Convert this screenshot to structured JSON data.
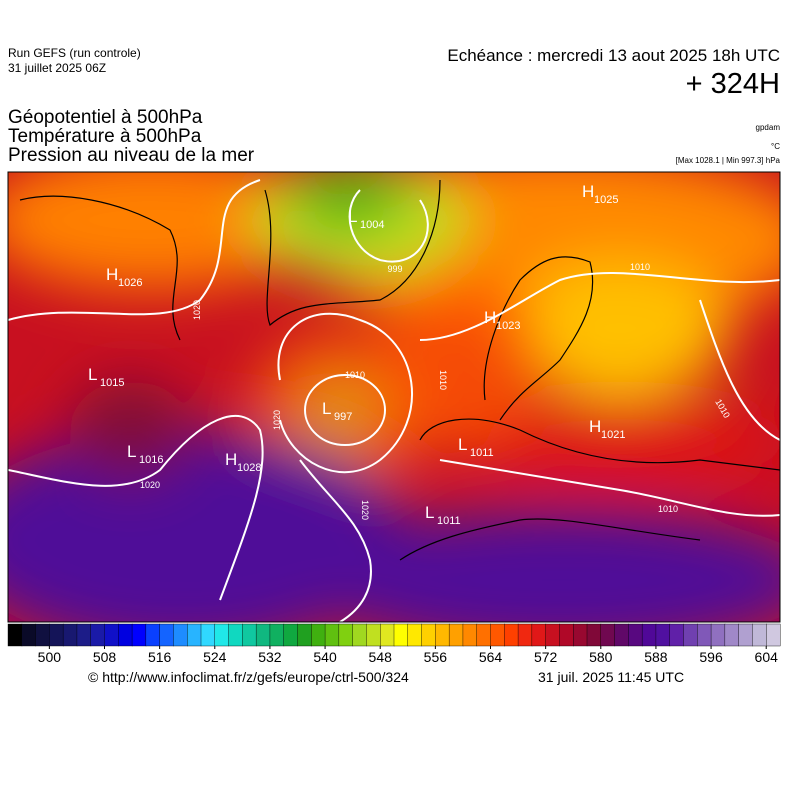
{
  "header": {
    "run": "Run GEFS (run controle)",
    "run_date": "31 juillet 2025 06Z",
    "valid": "Echéance : mercredi 13 aout 2025 18h UTC",
    "lead": "+ 324H",
    "fields": [
      "Géopotentiel à 500hPa",
      "Température à 500hPa",
      "Pression au niveau de la mer"
    ],
    "unit_geo": "gpdam",
    "unit_temp": "°C",
    "pressure_range": "[Max 1028.1 | Min 997.3] hPa"
  },
  "map": {
    "centers": [
      {
        "letter": "H",
        "value": 1026
      },
      {
        "letter": "L",
        "value": 1004
      },
      {
        "letter": "H",
        "value": 1025
      },
      {
        "letter": "H",
        "value": 1023
      },
      {
        "letter": "L",
        "value": 1015
      },
      {
        "letter": "L",
        "value": 997
      },
      {
        "letter": "L",
        "value": 1016
      },
      {
        "letter": "H",
        "value": 1028
      },
      {
        "letter": "L",
        "value": 1011
      },
      {
        "letter": "L",
        "value": 1011
      },
      {
        "letter": "H",
        "value": 1021
      }
    ],
    "isobar_labels": [
      999,
      1020,
      1020,
      1010,
      1020,
      1010,
      1020,
      1010,
      1010,
      1010
    ]
  },
  "colorbar": {
    "range": [
      494,
      606
    ],
    "ticks": [
      500,
      508,
      516,
      524,
      532,
      540,
      548,
      556,
      564,
      572,
      580,
      588,
      596,
      604
    ],
    "colors": [
      "#000000",
      "#0a0a28",
      "#101040",
      "#141458",
      "#181870",
      "#1c1c88",
      "#1a1aa8",
      "#1010c8",
      "#0000e0",
      "#0000ff",
      "#0a40ff",
      "#1464ff",
      "#1e8cff",
      "#28b4ff",
      "#30d8ff",
      "#20e8e8",
      "#10d8c0",
      "#10c8a0",
      "#10b880",
      "#10b060",
      "#10a840",
      "#20a020",
      "#40b010",
      "#60c010",
      "#80d010",
      "#a0d820",
      "#c0e020",
      "#e0e820",
      "#ffff00",
      "#ffe800",
      "#ffd000",
      "#ffb800",
      "#ffa000",
      "#ff8800",
      "#ff7000",
      "#ff5800",
      "#ff4000",
      "#f02810",
      "#e01818",
      "#c81020",
      "#b00828",
      "#980830",
      "#800838",
      "#700850",
      "#600868",
      "#580880",
      "#500898",
      "#5010a0",
      "#6020a8",
      "#7040b0",
      "#8058b8",
      "#9070c0",
      "#a088c8",
      "#b0a0d0",
      "#c0b8d8",
      "#d0c8e0"
    ]
  },
  "footer": {
    "url": "© http://www.infoclimat.fr/z/gefs/europe/ctrl-500/324",
    "generated": "31 juil. 2025 11:45 UTC"
  }
}
